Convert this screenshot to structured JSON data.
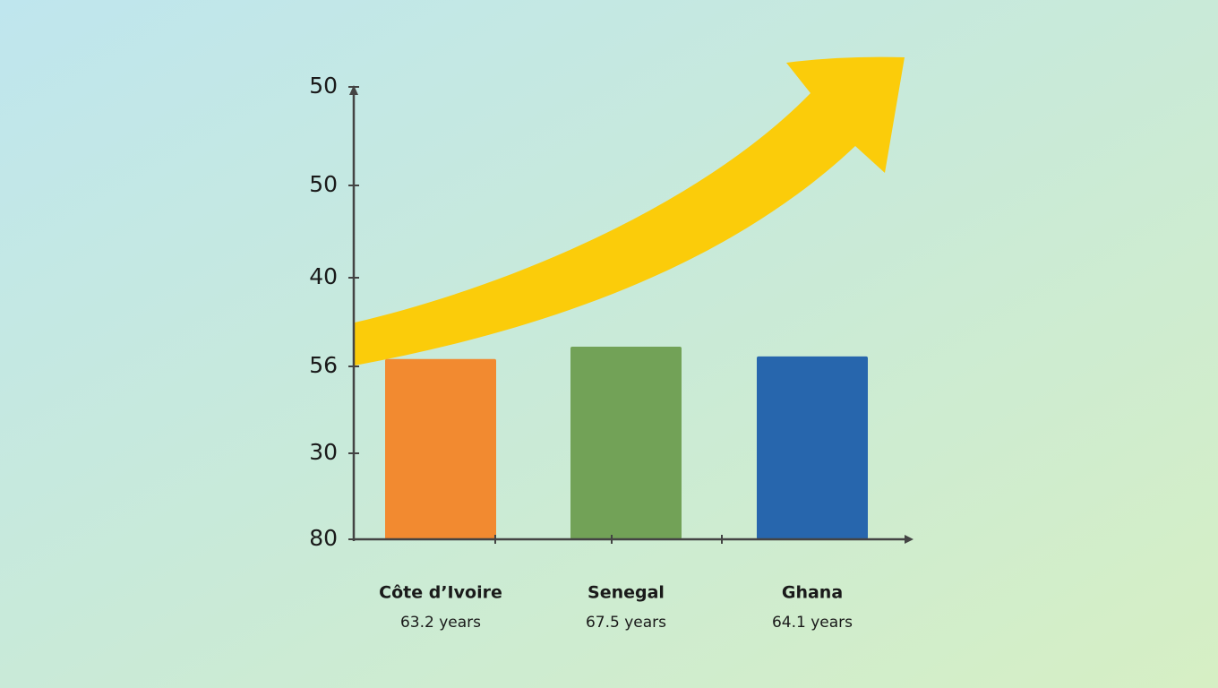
{
  "chart_data": {
    "type": "bar",
    "y_axis_labels": [
      "50",
      "50",
      "40",
      "56",
      "30",
      "80"
    ],
    "categories": [
      "Côte d’Ivoire",
      "Senegal",
      "Ghana"
    ],
    "values": [
      63.2,
      67.5,
      64.1
    ],
    "value_labels": [
      "63.2 years",
      "67.5 years",
      "64.1 years"
    ],
    "colors": [
      "#f28a30",
      "#72a257",
      "#2766ad"
    ]
  }
}
